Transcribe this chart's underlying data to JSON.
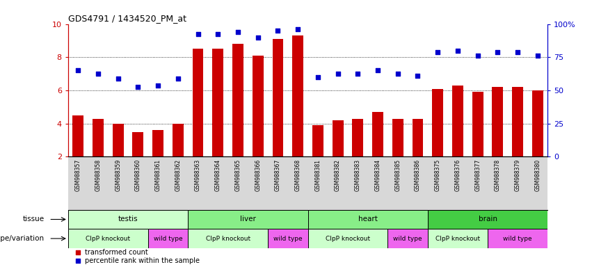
{
  "title": "GDS4791 / 1434520_PM_at",
  "samples": [
    "GSM988357",
    "GSM988358",
    "GSM988359",
    "GSM988360",
    "GSM988361",
    "GSM988362",
    "GSM988363",
    "GSM988364",
    "GSM988365",
    "GSM988366",
    "GSM988367",
    "GSM988368",
    "GSM988381",
    "GSM988382",
    "GSM988383",
    "GSM988384",
    "GSM988385",
    "GSM988386",
    "GSM988375",
    "GSM988376",
    "GSM988377",
    "GSM988378",
    "GSM988379",
    "GSM988380"
  ],
  "bar_values": [
    4.5,
    4.3,
    4.0,
    3.5,
    3.6,
    4.0,
    8.5,
    8.5,
    8.8,
    8.1,
    9.1,
    9.3,
    3.9,
    4.2,
    4.3,
    4.7,
    4.3,
    4.3,
    6.1,
    6.3,
    5.9,
    6.2,
    6.2,
    6.0
  ],
  "dot_values": [
    7.2,
    7.0,
    6.7,
    6.2,
    6.3,
    6.7,
    9.4,
    9.4,
    9.5,
    9.2,
    9.6,
    9.7,
    6.8,
    7.0,
    7.0,
    7.2,
    7.0,
    6.9,
    8.3,
    8.4,
    8.1,
    8.3,
    8.3,
    8.1
  ],
  "ylim": [
    2,
    10
  ],
  "yticks": [
    2,
    4,
    6,
    8,
    10
  ],
  "ytick_labels": [
    "2",
    "4",
    "6",
    "8",
    "10"
  ],
  "right_yticks": [
    0,
    25,
    50,
    75,
    100
  ],
  "right_ytick_labels": [
    "0",
    "25",
    "50",
    "75",
    "100%"
  ],
  "bar_color": "#cc0000",
  "dot_color": "#0000cc",
  "grid_color": "#000000",
  "bg_color": "#ffffff",
  "xtick_bg": "#d8d8d8",
  "tissue_row": {
    "label": "tissue",
    "groups": [
      {
        "name": "testis",
        "start": 0,
        "end": 6,
        "color": "#ccffcc"
      },
      {
        "name": "liver",
        "start": 6,
        "end": 12,
        "color": "#88ee88"
      },
      {
        "name": "heart",
        "start": 12,
        "end": 18,
        "color": "#88ee88"
      },
      {
        "name": "brain",
        "start": 18,
        "end": 24,
        "color": "#44cc44"
      }
    ]
  },
  "genotype_row": {
    "label": "genotype/variation",
    "groups": [
      {
        "name": "ClpP knockout",
        "start": 0,
        "end": 4,
        "color": "#ccffcc"
      },
      {
        "name": "wild type",
        "start": 4,
        "end": 6,
        "color": "#ee66ee"
      },
      {
        "name": "ClpP knockout",
        "start": 6,
        "end": 10,
        "color": "#ccffcc"
      },
      {
        "name": "wild type",
        "start": 10,
        "end": 12,
        "color": "#ee66ee"
      },
      {
        "name": "ClpP knockout",
        "start": 12,
        "end": 16,
        "color": "#ccffcc"
      },
      {
        "name": "wild type",
        "start": 16,
        "end": 18,
        "color": "#ee66ee"
      },
      {
        "name": "ClpP knockout",
        "start": 18,
        "end": 21,
        "color": "#ccffcc"
      },
      {
        "name": "wild type",
        "start": 21,
        "end": 24,
        "color": "#ee66ee"
      }
    ]
  },
  "legend_items": [
    {
      "label": "transformed count",
      "color": "#cc0000",
      "marker": "s"
    },
    {
      "label": "percentile rank within the sample",
      "color": "#0000cc",
      "marker": "s"
    }
  ]
}
